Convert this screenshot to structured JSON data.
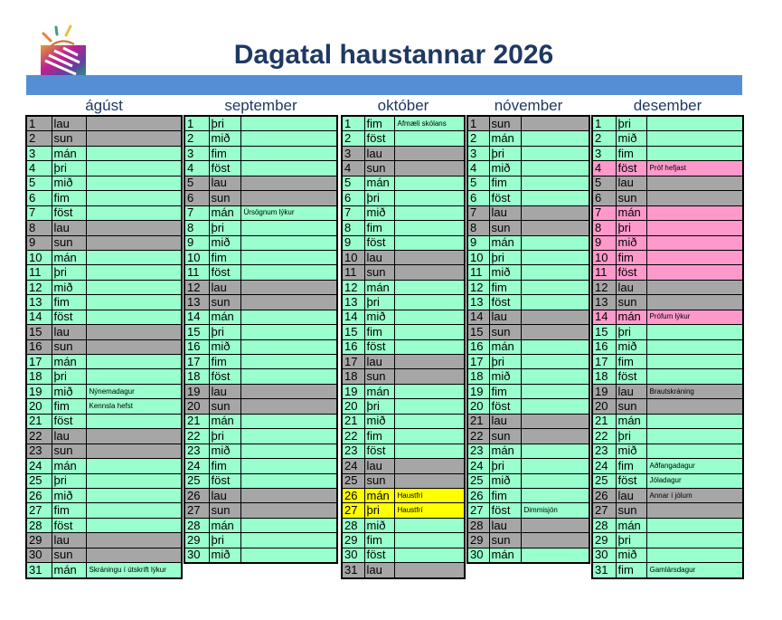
{
  "title": "Dagatal haustannar 2026",
  "colors": {
    "weekday": "#99ffcc",
    "weekend": "#a6a6a6",
    "exam": "#ff99cc",
    "holiday": "#ffff00",
    "banner": "#558ed5",
    "title": "#1f3864"
  },
  "months": [
    {
      "name": "ágúst",
      "rows": [
        {
          "d": "1",
          "w": "lau",
          "t": "wk"
        },
        {
          "d": "2",
          "w": "sun",
          "t": "wk"
        },
        {
          "d": "3",
          "w": "mán"
        },
        {
          "d": "4",
          "w": "þri"
        },
        {
          "d": "5",
          "w": "mið"
        },
        {
          "d": "6",
          "w": "fim"
        },
        {
          "d": "7",
          "w": "föst"
        },
        {
          "d": "8",
          "w": "lau",
          "t": "wk"
        },
        {
          "d": "9",
          "w": "sun",
          "t": "wk"
        },
        {
          "d": "10",
          "w": "mán"
        },
        {
          "d": "11",
          "w": "þri"
        },
        {
          "d": "12",
          "w": "mið"
        },
        {
          "d": "13",
          "w": "fim"
        },
        {
          "d": "14",
          "w": "föst"
        },
        {
          "d": "15",
          "w": "lau",
          "t": "wk"
        },
        {
          "d": "16",
          "w": "sun",
          "t": "wk"
        },
        {
          "d": "17",
          "w": "mán"
        },
        {
          "d": "18",
          "w": "þri"
        },
        {
          "d": "19",
          "w": "mið",
          "n": "Nýnemadagur"
        },
        {
          "d": "20",
          "w": "fim",
          "n": "Kennsla hefst"
        },
        {
          "d": "21",
          "w": "föst"
        },
        {
          "d": "22",
          "w": "lau",
          "t": "wk"
        },
        {
          "d": "23",
          "w": "sun",
          "t": "wk"
        },
        {
          "d": "24",
          "w": "mán"
        },
        {
          "d": "25",
          "w": "þri"
        },
        {
          "d": "26",
          "w": "mið"
        },
        {
          "d": "27",
          "w": "fim"
        },
        {
          "d": "28",
          "w": "föst"
        },
        {
          "d": "29",
          "w": "lau",
          "t": "wk"
        },
        {
          "d": "30",
          "w": "sun",
          "t": "wk"
        },
        {
          "d": "31",
          "w": "mán",
          "n": "Skráningu í útskrift lýkur"
        }
      ]
    },
    {
      "name": "september",
      "rows": [
        {
          "d": "1",
          "w": "þri"
        },
        {
          "d": "2",
          "w": "mið"
        },
        {
          "d": "3",
          "w": "fim"
        },
        {
          "d": "4",
          "w": "föst"
        },
        {
          "d": "5",
          "w": "lau",
          "t": "wk"
        },
        {
          "d": "6",
          "w": "sun",
          "t": "wk"
        },
        {
          "d": "7",
          "w": "mán",
          "n": "Úrsögnum lýkur"
        },
        {
          "d": "8",
          "w": "þri"
        },
        {
          "d": "9",
          "w": "mið"
        },
        {
          "d": "10",
          "w": "fim"
        },
        {
          "d": "11",
          "w": "föst"
        },
        {
          "d": "12",
          "w": "lau",
          "t": "wk"
        },
        {
          "d": "13",
          "w": "sun",
          "t": "wk"
        },
        {
          "d": "14",
          "w": "mán"
        },
        {
          "d": "15",
          "w": "þri"
        },
        {
          "d": "16",
          "w": "mið"
        },
        {
          "d": "17",
          "w": "fim"
        },
        {
          "d": "18",
          "w": "föst"
        },
        {
          "d": "19",
          "w": "lau",
          "t": "wk"
        },
        {
          "d": "20",
          "w": "sun",
          "t": "wk"
        },
        {
          "d": "21",
          "w": "mán"
        },
        {
          "d": "22",
          "w": "þri"
        },
        {
          "d": "23",
          "w": "mið"
        },
        {
          "d": "24",
          "w": "fim"
        },
        {
          "d": "25",
          "w": "föst"
        },
        {
          "d": "26",
          "w": "lau",
          "t": "wk"
        },
        {
          "d": "27",
          "w": "sun",
          "t": "wk"
        },
        {
          "d": "28",
          "w": "mán"
        },
        {
          "d": "29",
          "w": "þri"
        },
        {
          "d": "30",
          "w": "mið"
        }
      ]
    },
    {
      "name": "október",
      "rows": [
        {
          "d": "1",
          "w": "fim",
          "n": "Afmæli skólans"
        },
        {
          "d": "2",
          "w": "föst"
        },
        {
          "d": "3",
          "w": "lau",
          "t": "wk"
        },
        {
          "d": "4",
          "w": "sun",
          "t": "wk"
        },
        {
          "d": "5",
          "w": "mán"
        },
        {
          "d": "6",
          "w": "þri"
        },
        {
          "d": "7",
          "w": "mið"
        },
        {
          "d": "8",
          "w": "fim"
        },
        {
          "d": "9",
          "w": "föst"
        },
        {
          "d": "10",
          "w": "lau",
          "t": "wk"
        },
        {
          "d": "11",
          "w": "sun",
          "t": "wk"
        },
        {
          "d": "12",
          "w": "mán"
        },
        {
          "d": "13",
          "w": "þri"
        },
        {
          "d": "14",
          "w": "mið"
        },
        {
          "d": "15",
          "w": "fim"
        },
        {
          "d": "16",
          "w": "föst"
        },
        {
          "d": "17",
          "w": "lau",
          "t": "wk"
        },
        {
          "d": "18",
          "w": "sun",
          "t": "wk"
        },
        {
          "d": "19",
          "w": "mán"
        },
        {
          "d": "20",
          "w": "þri"
        },
        {
          "d": "21",
          "w": "mið"
        },
        {
          "d": "22",
          "w": "fim"
        },
        {
          "d": "23",
          "w": "föst"
        },
        {
          "d": "24",
          "w": "lau",
          "t": "wk"
        },
        {
          "d": "25",
          "w": "sun",
          "t": "wk"
        },
        {
          "d": "26",
          "w": "mán",
          "n": "Haustfrí",
          "t": "hf"
        },
        {
          "d": "27",
          "w": "þri",
          "n": "Haustfrí",
          "t": "hf"
        },
        {
          "d": "28",
          "w": "mið"
        },
        {
          "d": "29",
          "w": "fim"
        },
        {
          "d": "30",
          "w": "föst"
        },
        {
          "d": "31",
          "w": "lau",
          "t": "wk"
        }
      ]
    },
    {
      "name": "nóvember",
      "rows": [
        {
          "d": "1",
          "w": "sun",
          "t": "wk"
        },
        {
          "d": "2",
          "w": "mán"
        },
        {
          "d": "3",
          "w": "þri"
        },
        {
          "d": "4",
          "w": "mið"
        },
        {
          "d": "5",
          "w": "fim"
        },
        {
          "d": "6",
          "w": "föst"
        },
        {
          "d": "7",
          "w": "lau",
          "t": "wk"
        },
        {
          "d": "8",
          "w": "sun",
          "t": "wk"
        },
        {
          "d": "9",
          "w": "mán"
        },
        {
          "d": "10",
          "w": "þri"
        },
        {
          "d": "11",
          "w": "mið"
        },
        {
          "d": "12",
          "w": "fim"
        },
        {
          "d": "13",
          "w": "föst"
        },
        {
          "d": "14",
          "w": "lau",
          "t": "wk"
        },
        {
          "d": "15",
          "w": "sun",
          "t": "wk"
        },
        {
          "d": "16",
          "w": "mán"
        },
        {
          "d": "17",
          "w": "þri"
        },
        {
          "d": "18",
          "w": "mið"
        },
        {
          "d": "19",
          "w": "fim"
        },
        {
          "d": "20",
          "w": "föst"
        },
        {
          "d": "21",
          "w": "lau",
          "t": "wk"
        },
        {
          "d": "22",
          "w": "sun",
          "t": "wk"
        },
        {
          "d": "23",
          "w": "mán"
        },
        {
          "d": "24",
          "w": "þri"
        },
        {
          "d": "25",
          "w": "mið"
        },
        {
          "d": "26",
          "w": "fim"
        },
        {
          "d": "27",
          "w": "föst",
          "n": "Dimmisjón"
        },
        {
          "d": "28",
          "w": "lau",
          "t": "wk"
        },
        {
          "d": "29",
          "w": "sun",
          "t": "wk"
        },
        {
          "d": "30",
          "w": "mán"
        }
      ]
    },
    {
      "name": "desember",
      "rows": [
        {
          "d": "1",
          "w": "þri"
        },
        {
          "d": "2",
          "w": "mið"
        },
        {
          "d": "3",
          "w": "fim"
        },
        {
          "d": "4",
          "w": "föst",
          "n": "Próf hefjast",
          "t": "ex"
        },
        {
          "d": "5",
          "w": "lau",
          "t": "wk"
        },
        {
          "d": "6",
          "w": "sun",
          "t": "wk"
        },
        {
          "d": "7",
          "w": "mán",
          "t": "ex"
        },
        {
          "d": "8",
          "w": "þri",
          "t": "ex"
        },
        {
          "d": "9",
          "w": "mið",
          "t": "ex"
        },
        {
          "d": "10",
          "w": "fim",
          "t": "ex"
        },
        {
          "d": "11",
          "w": "föst",
          "t": "ex"
        },
        {
          "d": "12",
          "w": "lau",
          "t": "wk"
        },
        {
          "d": "13",
          "w": "sun",
          "t": "wk"
        },
        {
          "d": "14",
          "w": "mán",
          "n": "Prófum lýkur",
          "t": "ex"
        },
        {
          "d": "15",
          "w": "þri"
        },
        {
          "d": "16",
          "w": "mið"
        },
        {
          "d": "17",
          "w": "fim"
        },
        {
          "d": "18",
          "w": "föst"
        },
        {
          "d": "19",
          "w": "lau",
          "n": "Brautskráning",
          "t": "wk"
        },
        {
          "d": "20",
          "w": "sun",
          "t": "wk"
        },
        {
          "d": "21",
          "w": "mán"
        },
        {
          "d": "22",
          "w": "þri"
        },
        {
          "d": "23",
          "w": "mið"
        },
        {
          "d": "24",
          "w": "fim",
          "n": "Aðfangadagur"
        },
        {
          "d": "25",
          "w": "föst",
          "n": "Jóladagur"
        },
        {
          "d": "26",
          "w": "lau",
          "n": "Annar í jólum",
          "t": "wk"
        },
        {
          "d": "27",
          "w": "sun",
          "t": "wk"
        },
        {
          "d": "28",
          "w": "mán"
        },
        {
          "d": "29",
          "w": "þri"
        },
        {
          "d": "30",
          "w": "mið"
        },
        {
          "d": "31",
          "w": "fim",
          "n": "Gamlársdagur"
        }
      ]
    }
  ]
}
